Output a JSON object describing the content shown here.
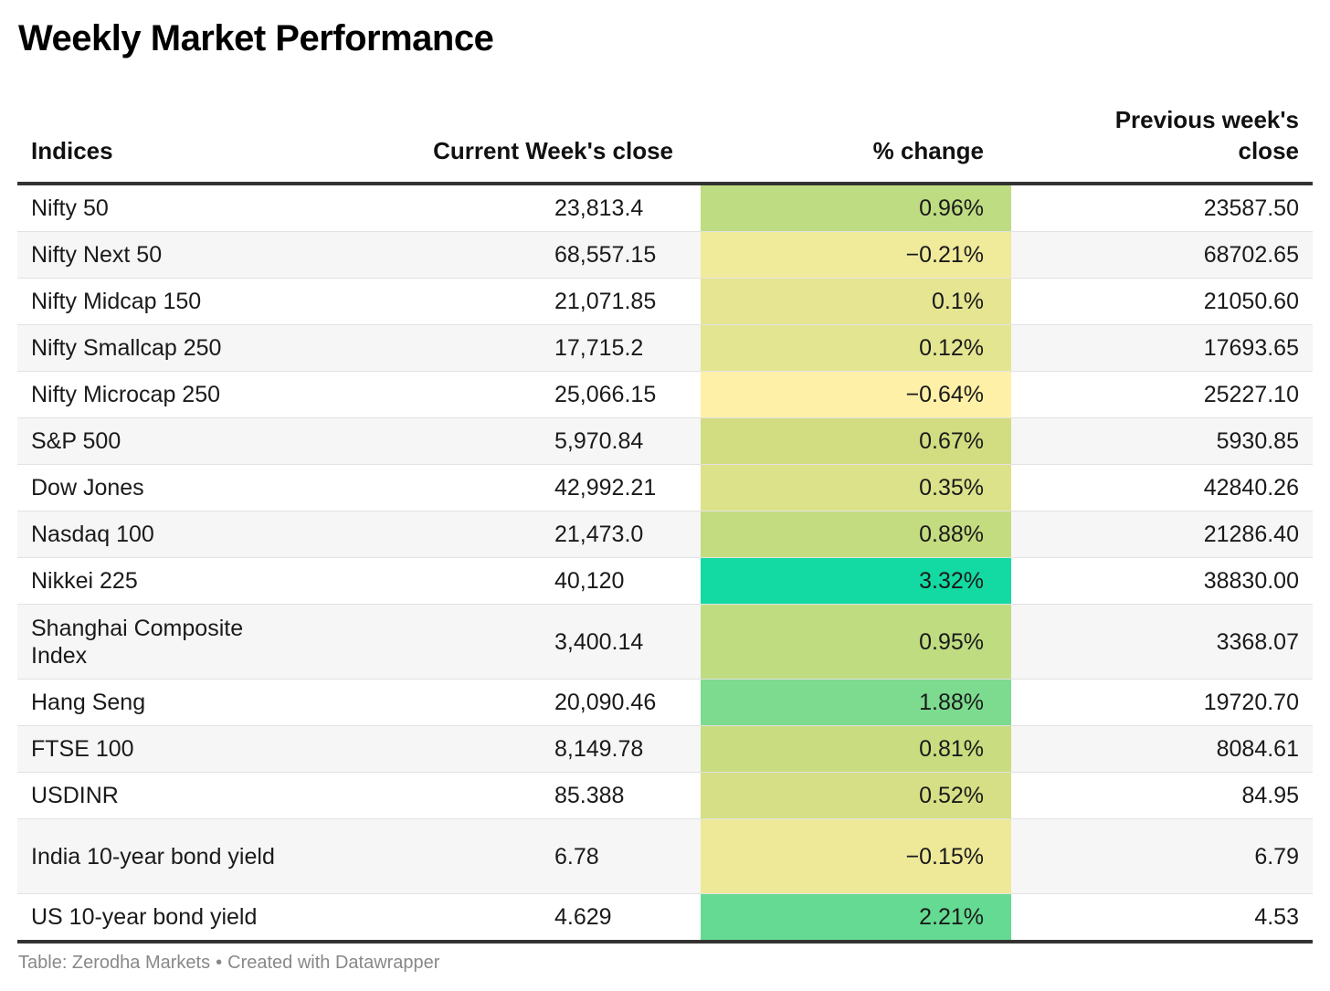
{
  "title": "Weekly Market Performance",
  "columns": {
    "indices": "Indices",
    "current": "Current Week's close",
    "pct_change": "% change",
    "previous_line1": "Previous week's",
    "previous_line2": "close"
  },
  "footer": {
    "source": "Table: Zerodha Markets",
    "separator": "•",
    "credit": "Created with Datawrapper"
  },
  "colors": {
    "pct_low": "#fff0a8",
    "pct_mid": "#cedc7e",
    "pct_high": "#13d9a2",
    "rule": "#333333"
  },
  "chart_data": {
    "type": "table",
    "title": "Weekly Market Performance",
    "headers": [
      "Indices",
      "Current Week's close",
      "% change",
      "Previous week's close"
    ],
    "rows": [
      {
        "name": "Nifty 50",
        "current": "23,813.4",
        "pct": "0.96%",
        "pct_value": 0.96,
        "prev": "23587.50"
      },
      {
        "name": "Nifty Next 50",
        "current": "68,557.15",
        "pct": "−0.21%",
        "pct_value": -0.21,
        "prev": "68702.65"
      },
      {
        "name": "Nifty Midcap 150",
        "current": "21,071.85",
        "pct": "0.1%",
        "pct_value": 0.1,
        "prev": "21050.60"
      },
      {
        "name": "Nifty Smallcap 250",
        "current": "17,715.2",
        "pct": "0.12%",
        "pct_value": 0.12,
        "prev": "17693.65"
      },
      {
        "name": "Nifty Microcap 250",
        "current": "25,066.15",
        "pct": "−0.64%",
        "pct_value": -0.64,
        "prev": "25227.10"
      },
      {
        "name": "S&P 500",
        "current": "5,970.84",
        "pct": "0.67%",
        "pct_value": 0.67,
        "prev": "5930.85"
      },
      {
        "name": "Dow Jones",
        "current": "42,992.21",
        "pct": "0.35%",
        "pct_value": 0.35,
        "prev": "42840.26"
      },
      {
        "name": "Nasdaq 100",
        "current": "21,473.0",
        "pct": "0.88%",
        "pct_value": 0.88,
        "prev": "21286.40"
      },
      {
        "name": "Nikkei 225",
        "current": "40,120",
        "pct": "3.32%",
        "pct_value": 3.32,
        "prev": "38830.00"
      },
      {
        "name": "Shanghai Composite Index",
        "current": "3,400.14",
        "pct": "0.95%",
        "pct_value": 0.95,
        "prev": "3368.07"
      },
      {
        "name": "Hang Seng",
        "current": "20,090.46",
        "pct": "1.88%",
        "pct_value": 1.88,
        "prev": "19720.70"
      },
      {
        "name": "FTSE 100",
        "current": "8,149.78",
        "pct": "0.81%",
        "pct_value": 0.81,
        "prev": "8084.61"
      },
      {
        "name": "USDINR",
        "current": "85.388",
        "pct": "0.52%",
        "pct_value": 0.52,
        "prev": "84.95"
      },
      {
        "name": "India 10-year bond yield",
        "current": "6.78",
        "pct": "−0.15%",
        "pct_value": -0.15,
        "prev": "6.79"
      },
      {
        "name": "US 10-year bond yield",
        "current": "4.629",
        "pct": "2.21%",
        "pct_value": 2.21,
        "prev": "4.53"
      }
    ]
  }
}
